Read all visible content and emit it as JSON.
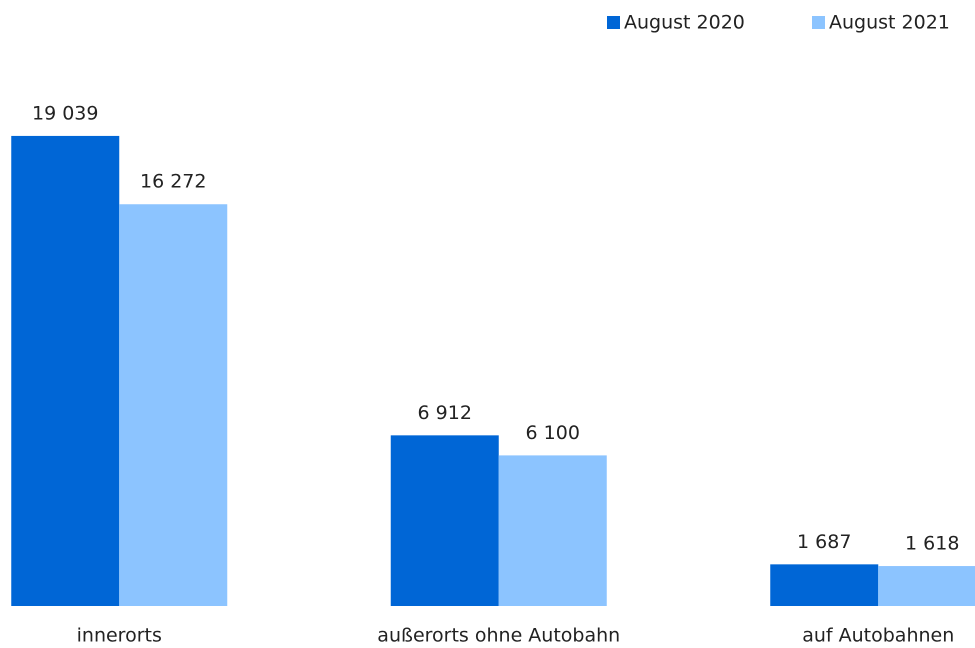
{
  "chart_data": {
    "type": "bar",
    "categories": [
      "innerorts",
      "außerorts ohne Autobahn",
      "auf Autobahnen"
    ],
    "series": [
      {
        "name": "August 2020",
        "color": "#0066d6",
        "values": [
          19039,
          6912,
          1687
        ],
        "value_labels": [
          "19 039",
          "6 912",
          "1 687"
        ]
      },
      {
        "name": "August 2021",
        "color": "#8cc4ff",
        "values": [
          16272,
          6100,
          1618
        ],
        "value_labels": [
          "16 272",
          "6 100",
          "1 618"
        ]
      }
    ],
    "ylim": [
      0,
      20000
    ],
    "legend": "top-right"
  }
}
